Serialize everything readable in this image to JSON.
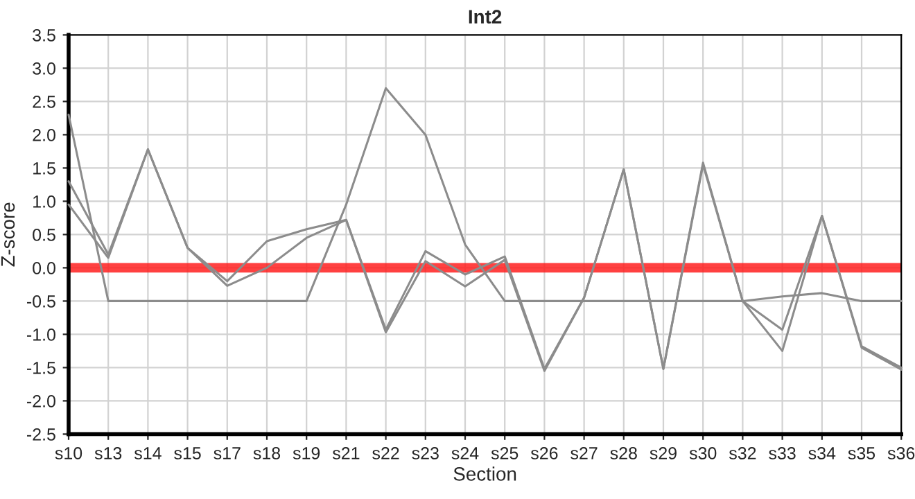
{
  "chart_data": {
    "type": "line",
    "title": "Int2",
    "xlabel": "Section",
    "ylabel": "Z-score",
    "categories": [
      "s10",
      "s13",
      "s14",
      "s15",
      "s17",
      "s18",
      "s19",
      "s21",
      "s22",
      "s23",
      "s24",
      "s25",
      "s26",
      "s27",
      "s28",
      "s29",
      "s30",
      "s32",
      "s33",
      "s34",
      "s35",
      "s36"
    ],
    "series": [
      {
        "color": "#8c8c8c",
        "values": [
          2.3,
          -0.5,
          -0.5,
          -0.5,
          -0.5,
          -0.5,
          -0.5,
          0.95,
          2.7,
          2.0,
          0.35,
          -0.5,
          -0.5,
          -0.5,
          -0.5,
          -0.5,
          -0.5,
          -0.5,
          -0.43,
          -0.38,
          -0.5,
          -0.5
        ]
      },
      {
        "color": "#8c8c8c",
        "values": [
          1.3,
          0.2,
          1.78,
          0.3,
          -0.2,
          0.4,
          0.58,
          0.72,
          -0.93,
          0.25,
          -0.1,
          0.17,
          -1.52,
          -0.45,
          1.48,
          -1.52,
          1.58,
          -0.5,
          -0.93,
          0.78,
          -1.18,
          -1.5
        ]
      },
      {
        "color": "#8c8c8c",
        "values": [
          0.95,
          0.15,
          1.78,
          0.3,
          -0.27,
          0.0,
          0.45,
          0.72,
          -0.97,
          0.1,
          -0.28,
          0.12,
          -1.55,
          -0.45,
          1.48,
          -1.52,
          1.55,
          -0.5,
          -1.25,
          0.78,
          -1.2,
          -1.53
        ]
      }
    ],
    "ref_lines": [
      {
        "axis": "y",
        "value": 0,
        "color": "#ff2020"
      }
    ],
    "ylim": [
      -2.5,
      3.5
    ],
    "yticks": [
      -2.5,
      {
        "value": -2,
        "label": "-2.0"
      },
      -1.5,
      {
        "value": -1,
        "label": "-1.0"
      },
      -0.5,
      {
        "value": 0,
        "label": "0.0"
      },
      0.5,
      {
        "value": 1,
        "label": "1.0"
      },
      1.5,
      {
        "value": 2,
        "label": "2.0"
      },
      2.5,
      {
        "value": 3,
        "label": "3.0"
      },
      3.5
    ],
    "grid": true,
    "legend": false,
    "marker": "none",
    "line_style": "solid"
  }
}
